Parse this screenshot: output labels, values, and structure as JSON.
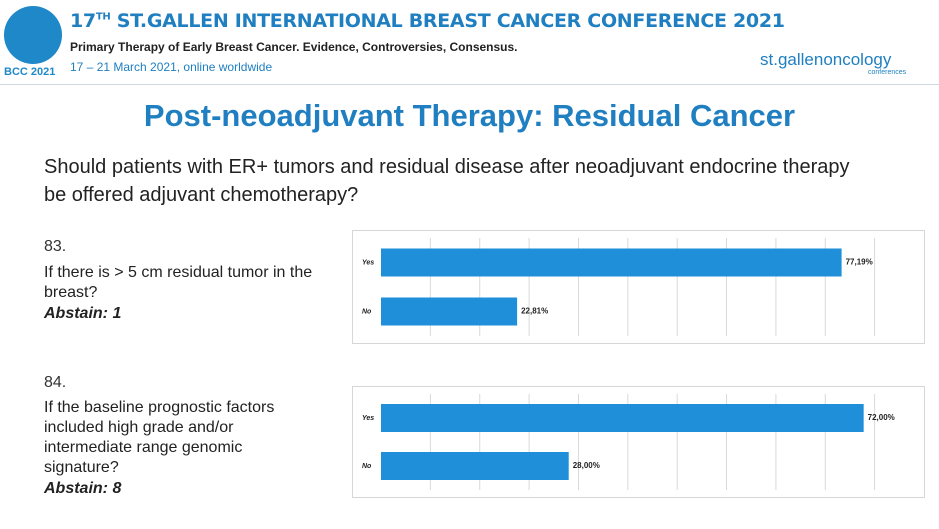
{
  "header": {
    "logo_text": "BCC 2021",
    "edition": "17",
    "edition_suffix": "TH",
    "title": "ST.GALLEN INTERNATIONAL BREAST CANCER CONFERENCE 2021",
    "subtitle": "Primary Therapy of Early Breast Cancer. Evidence, Controversies, Consensus.",
    "date": "17 – 21 March 2021, online worldwide",
    "brand": "st.gallenoncology",
    "brand_sub": "conferences"
  },
  "title": "Post-neoadjuvant Therapy: Residual Cancer",
  "question": "Should patients with ER+ tumors and residual disease after neoadjuvant endocrine therapy be offered adjuvant chemotherapy?",
  "chart_data": [
    {
      "type": "bar",
      "orientation": "horizontal",
      "number": "83.",
      "title": "If there is > 5 cm residual tumor in the breast?",
      "subtitle": "Abstain: 1",
      "categories": [
        "Yes",
        "No"
      ],
      "values": [
        77.19,
        22.81
      ],
      "value_labels": [
        "77,19%",
        "22,81%"
      ],
      "color": "#1e8fd8",
      "xlim": [
        0,
        91
      ],
      "grid": true
    },
    {
      "type": "bar",
      "orientation": "horizontal",
      "number": "84.",
      "title": "If the baseline prognostic factors included high grade and/or intermediate range genomic signature?",
      "subtitle": "Abstain: 8",
      "categories": [
        "Yes",
        "No"
      ],
      "values": [
        72.0,
        28.0
      ],
      "value_labels": [
        "72,00%",
        "28,00%"
      ],
      "color": "#1e8fd8",
      "xlim": [
        0,
        81
      ],
      "grid": true
    }
  ]
}
